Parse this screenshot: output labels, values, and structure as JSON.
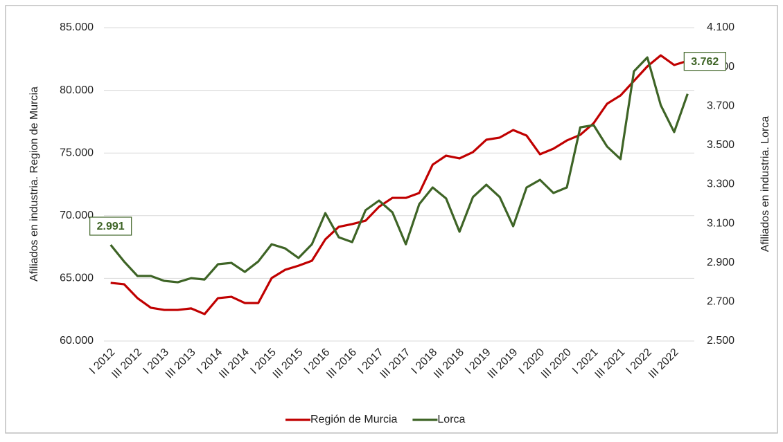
{
  "chart_data": {
    "type": "line",
    "categories": [
      "I 2012",
      null,
      "III 2012",
      null,
      "I 2013",
      null,
      "III 2013",
      null,
      "I 2014",
      null,
      "III 2014",
      null,
      "I 2015",
      null,
      "III 2015",
      null,
      "I 2016",
      null,
      "III 2016",
      null,
      "I 2017",
      null,
      "III 2017",
      null,
      "I 2018",
      null,
      "III 2018",
      null,
      "I 2019",
      null,
      "III 2019",
      null,
      "I 2020",
      null,
      "III 2020",
      null,
      "I 2021",
      null,
      "III 2021",
      null,
      "I 2022",
      null,
      "III 2022",
      null
    ],
    "series": [
      {
        "name": "Región de Murcia",
        "color": "#c00000",
        "values": [
          64640,
          64530,
          63420,
          62650,
          62480,
          62480,
          62600,
          62150,
          63420,
          63530,
          63030,
          63030,
          65020,
          65680,
          66010,
          66400,
          68110,
          69110,
          69330,
          69600,
          70710,
          71420,
          71420,
          71810,
          74070,
          74790,
          74570,
          75070,
          76060,
          76230,
          76830,
          76390,
          74900,
          75340,
          76000,
          76450,
          77380,
          78930,
          79590,
          80750,
          81910,
          82790,
          82020,
          82350
        ]
      },
      {
        "name": "Lorca",
        "color": "#3e6426",
        "axis": "y2",
        "values": [
          2991,
          2906,
          2832,
          2832,
          2807,
          2800,
          2821,
          2814,
          2892,
          2899,
          2853,
          2906,
          2994,
          2973,
          2924,
          2994,
          3153,
          3030,
          3005,
          3168,
          3217,
          3157,
          2994,
          3199,
          3284,
          3228,
          3058,
          3235,
          3298,
          3235,
          3086,
          3284,
          3323,
          3256,
          3284,
          3591,
          3602,
          3493,
          3429,
          3877,
          3948,
          3704,
          3567,
          3762
        ],
        "value_labels": [
          "2.991",
          null,
          null,
          null,
          null,
          null,
          null,
          null,
          null,
          null,
          null,
          null,
          null,
          null,
          null,
          null,
          null,
          null,
          null,
          null,
          null,
          null,
          null,
          null,
          null,
          null,
          null,
          null,
          null,
          null,
          null,
          null,
          null,
          null,
          null,
          null,
          null,
          null,
          null,
          null,
          null,
          null,
          null,
          "3.762"
        ]
      }
    ],
    "ylabel": "Afiliados en industria. Region de Murcia",
    "y2label": "Afiliados en industria. Lorca",
    "ylim": [
      60000,
      85000
    ],
    "yticks": [
      {
        "value": 60000,
        "label": "60.000"
      },
      {
        "value": 65000,
        "label": "65.000"
      },
      {
        "value": 70000,
        "label": "70.000"
      },
      {
        "value": 75000,
        "label": "75.000"
      },
      {
        "value": 80000,
        "label": "80.000"
      },
      {
        "value": 85000,
        "label": "85.000"
      }
    ],
    "y2lim": [
      2500,
      4100
    ],
    "y2ticks": [
      {
        "value": 2500,
        "label": "2.500"
      },
      {
        "value": 2700,
        "label": "2.700"
      },
      {
        "value": 2900,
        "label": "2.900"
      },
      {
        "value": 3100,
        "label": "3.100"
      },
      {
        "value": 3300,
        "label": "3.300"
      },
      {
        "value": 3500,
        "label": "3.500"
      },
      {
        "value": 3700,
        "label": "3.700"
      },
      {
        "value": 3900,
        "label": "3.900"
      },
      {
        "value": 4100,
        "label": "4.100"
      }
    ],
    "grid": true,
    "legend": "bottom"
  }
}
